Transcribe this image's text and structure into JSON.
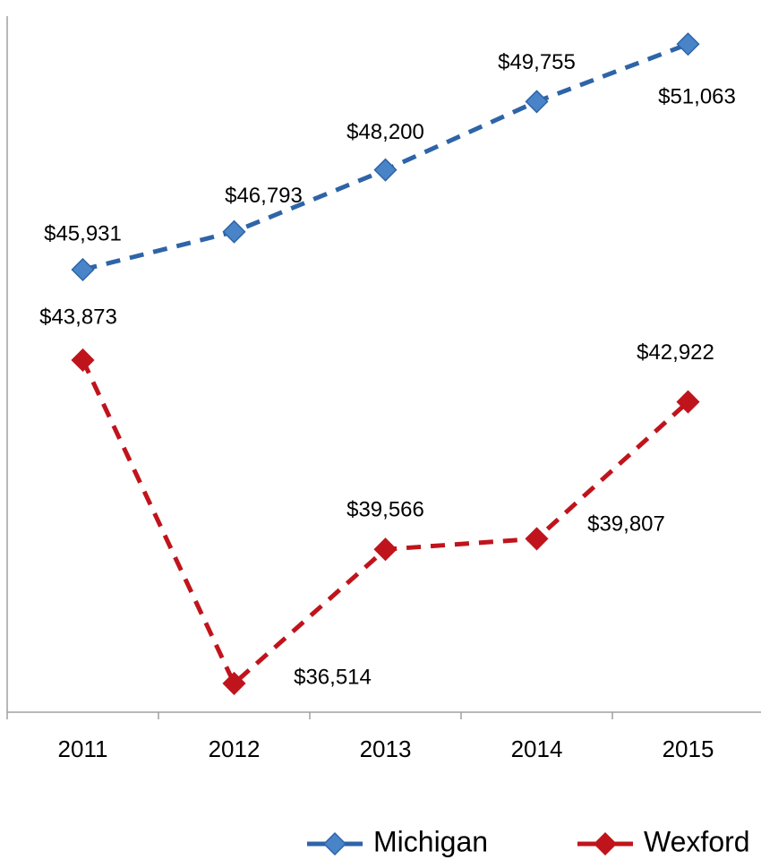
{
  "chart_data": {
    "type": "line",
    "categories": [
      "2011",
      "2012",
      "2013",
      "2014",
      "2015"
    ],
    "series": [
      {
        "name": "Michigan",
        "color": "#2e64a8",
        "marker_color": "#4a84c8",
        "values": [
          45931,
          46793,
          48200,
          49755,
          51063
        ],
        "value_labels": [
          "$45,931",
          "$46,793",
          "$48,200",
          "$49,755",
          "$51,063"
        ]
      },
      {
        "name": "Wexford",
        "color": "#c0141c",
        "marker_color": "#c0141c",
        "values": [
          43873,
          36514,
          39566,
          39807,
          42922
        ],
        "value_labels": [
          "$43,873",
          "$36,514",
          "$39,566",
          "$39,807",
          "$42,922"
        ]
      }
    ],
    "ylim": [
      35860,
      51700
    ],
    "legend": "bottom"
  }
}
